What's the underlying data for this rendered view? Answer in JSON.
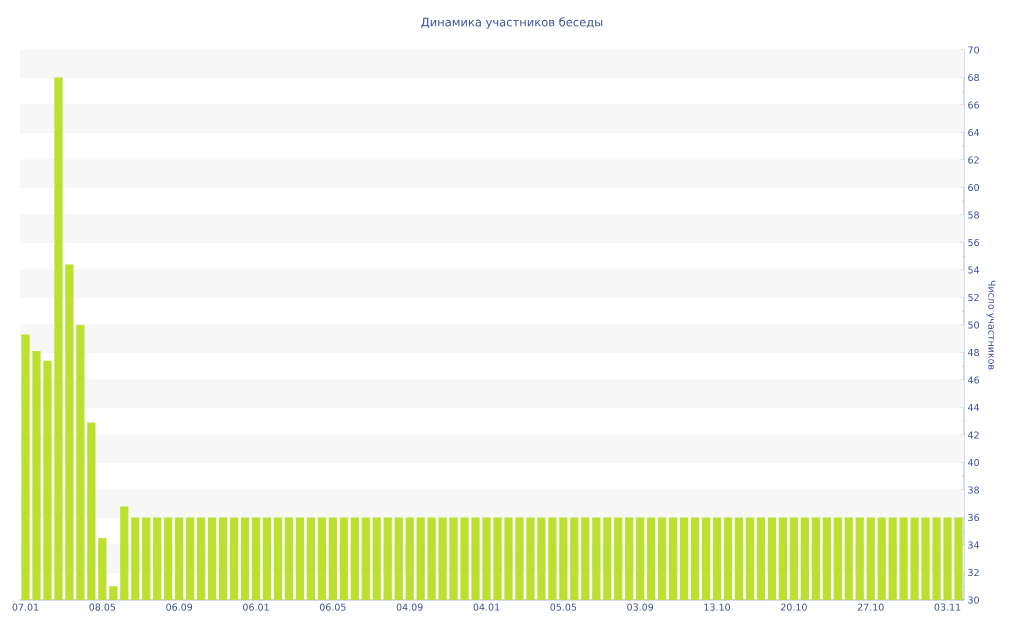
{
  "chart_data": {
    "type": "bar",
    "title": "Динамика участников беседы",
    "ylabel": "Число участников",
    "categories": [
      "07.01",
      null,
      null,
      null,
      null,
      null,
      null,
      "08.05",
      null,
      null,
      null,
      null,
      null,
      null,
      "06.09",
      null,
      null,
      null,
      null,
      null,
      null,
      "06.01",
      null,
      null,
      null,
      null,
      null,
      null,
      "06.05",
      null,
      null,
      null,
      null,
      null,
      null,
      "04.09",
      null,
      null,
      null,
      null,
      null,
      null,
      "04.01",
      null,
      null,
      null,
      null,
      null,
      null,
      "05.05",
      null,
      null,
      null,
      null,
      null,
      null,
      "03.09",
      null,
      null,
      null,
      null,
      null,
      null,
      "13.10",
      null,
      null,
      null,
      null,
      null,
      null,
      "20.10",
      null,
      null,
      null,
      null,
      null,
      null,
      "27.10",
      null,
      null,
      null,
      null,
      null,
      null,
      "03.11",
      null
    ],
    "values": [
      49.3,
      48.1,
      47.4,
      68.0,
      54.4,
      50.0,
      42.9,
      34.5,
      31.0,
      36.8,
      36,
      36,
      36,
      36,
      36,
      36,
      36,
      36,
      36,
      36,
      36,
      36,
      36,
      36,
      36,
      36,
      36,
      36,
      36,
      36,
      36,
      36,
      36,
      36,
      36,
      36,
      36,
      36,
      36,
      36,
      36,
      36,
      36,
      36,
      36,
      36,
      36,
      36,
      36,
      36,
      36,
      36,
      36,
      36,
      36,
      36,
      36,
      36,
      36,
      36,
      36,
      36,
      36,
      36,
      36,
      36,
      36,
      36,
      36,
      36,
      36,
      36,
      36,
      36,
      36,
      36,
      36,
      36,
      36,
      36,
      36,
      36,
      36,
      36,
      36,
      36
    ],
    "color": "#bbe02f",
    "ylim": [
      30,
      70
    ],
    "yticks": [
      30,
      32,
      34,
      36,
      38,
      40,
      42,
      44,
      46,
      48,
      50,
      52,
      54,
      56,
      58,
      60,
      62,
      64,
      66,
      68,
      70
    ],
    "grid": "y"
  }
}
